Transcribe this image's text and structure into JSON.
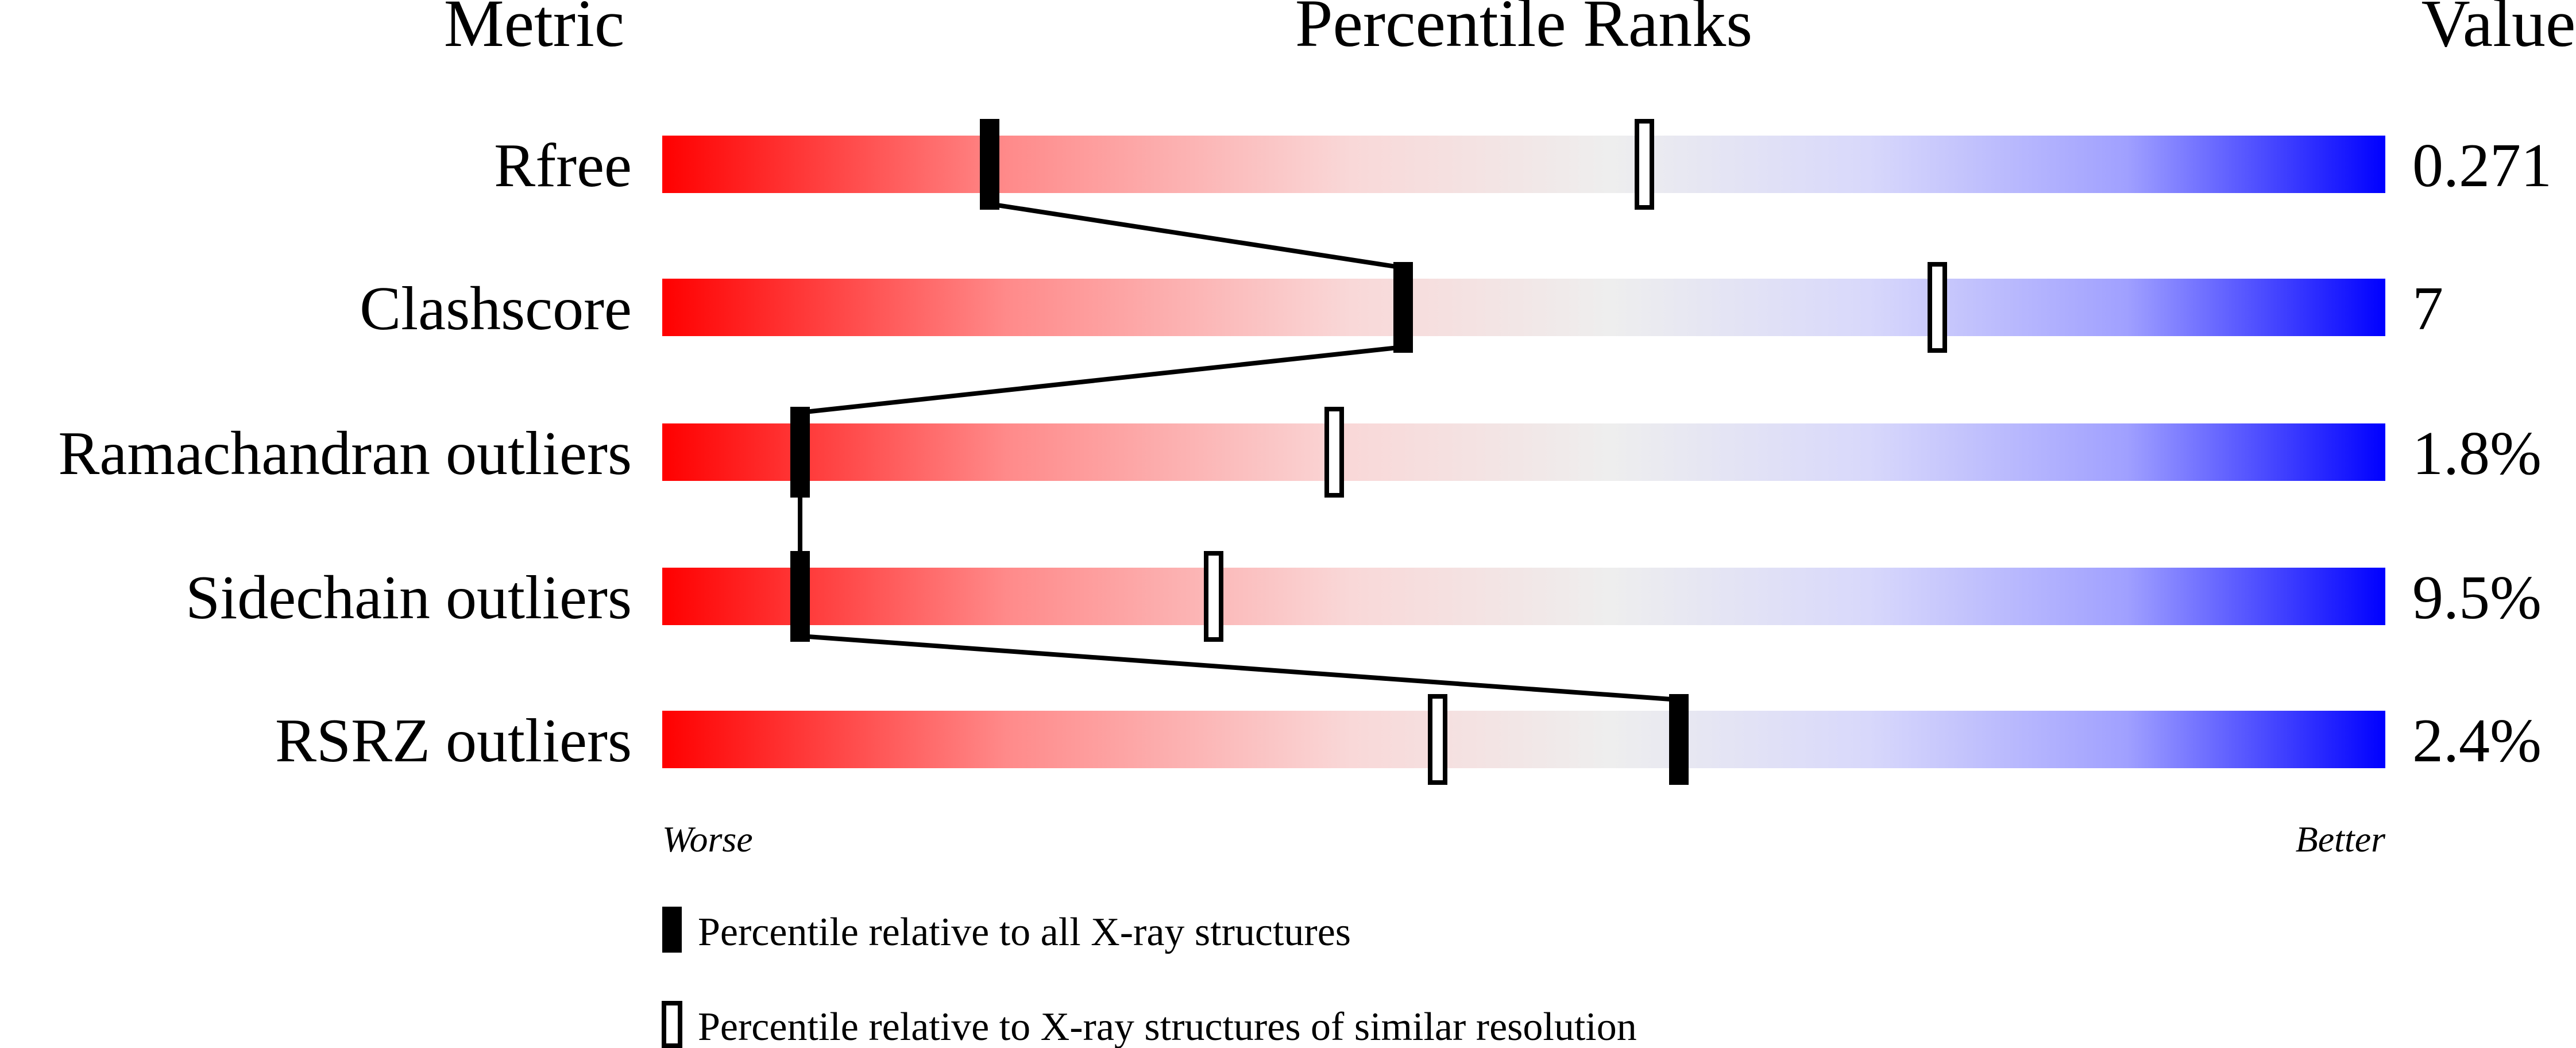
{
  "chart_data": {
    "type": "percentile-slider",
    "headers": {
      "metric": "Metric",
      "ranks": "Percentile Ranks",
      "value": "Value"
    },
    "xlim": [
      0,
      100
    ],
    "axis_labels": {
      "worse": "Worse",
      "better": "Better"
    },
    "metrics": [
      {
        "name": "Rfree",
        "value": "0.271",
        "percentile_all": 19,
        "percentile_similar": 57
      },
      {
        "name": "Clashscore",
        "value": "7",
        "percentile_all": 43,
        "percentile_similar": 74
      },
      {
        "name": "Ramachandran outliers",
        "value": "1.8%",
        "percentile_all": 8,
        "percentile_similar": 39
      },
      {
        "name": "Sidechain outliers",
        "value": "9.5%",
        "percentile_all": 8,
        "percentile_similar": 32
      },
      {
        "name": "RSRZ outliers",
        "value": "2.4%",
        "percentile_all": 59,
        "percentile_similar": 45
      }
    ],
    "legend": [
      {
        "marker": "filled",
        "label": "Percentile relative to all X-ray structures"
      },
      {
        "marker": "open",
        "label": "Percentile relative to X-ray structures of similar resolution"
      }
    ],
    "gradient_colors": {
      "worse": "#ff0000",
      "middle": "#eeeeee",
      "better": "#0000ff"
    }
  }
}
